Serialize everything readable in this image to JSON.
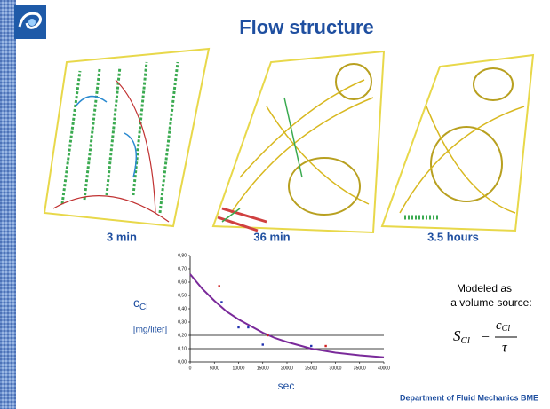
{
  "slide": {
    "title": "Flow structure",
    "captions": [
      "3 min",
      "36 min",
      "3.5 hours"
    ],
    "chart": {
      "type": "line",
      "y_label": "c",
      "y_label_sub": "Cl",
      "y_unit": "[mg/liter]",
      "x_label": "sec",
      "xlim": [
        0,
        40000
      ],
      "xticks": [
        0,
        5000,
        10000,
        15000,
        20000,
        25000,
        30000,
        35000,
        40000
      ],
      "ylim": [
        0,
        0.8
      ],
      "yticks": [
        {
          "value": 0,
          "label": "0,00"
        },
        {
          "value": 0.1,
          "label": "0,10"
        },
        {
          "value": 0.2,
          "label": "0,20"
        },
        {
          "value": 0.3,
          "label": "0,30"
        },
        {
          "value": 0.4,
          "label": "0,40"
        },
        {
          "value": 0.5,
          "label": "0,50"
        },
        {
          "value": 0.6,
          "label": "0,60"
        },
        {
          "value": 0.7,
          "label": "0,70"
        },
        {
          "value": 0.8,
          "label": "0,80"
        }
      ],
      "hlines": [
        0.2,
        0.1
      ],
      "curve": {
        "color": "#7a2a9a",
        "x": [
          0,
          2500,
          5000,
          7500,
          10000,
          12500,
          15000,
          17500,
          20000,
          25000,
          30000,
          35000,
          40000
        ],
        "values": [
          0.66,
          0.55,
          0.46,
          0.38,
          0.32,
          0.27,
          0.22,
          0.18,
          0.15,
          0.1,
          0.07,
          0.05,
          0.035
        ]
      },
      "points": [
        {
          "color": "#d02020",
          "x": [
            6000,
            16000,
            28000
          ],
          "values": [
            0.57,
            0.2,
            0.12
          ]
        },
        {
          "color": "#2030b0",
          "x": [
            6500,
            10000,
            12000,
            15000,
            25000
          ],
          "values": [
            0.45,
            0.26,
            0.26,
            0.13,
            0.12
          ]
        }
      ]
    },
    "note_lines": [
      "Modeled as",
      "a volume source:"
    ],
    "formula": {
      "lhs": "S",
      "lhs_sub": "Cl",
      "eq": "=",
      "num": "c",
      "num_sub": "Cl",
      "den": "τ"
    },
    "footer": "Department of Fluid Mechanics BME"
  }
}
